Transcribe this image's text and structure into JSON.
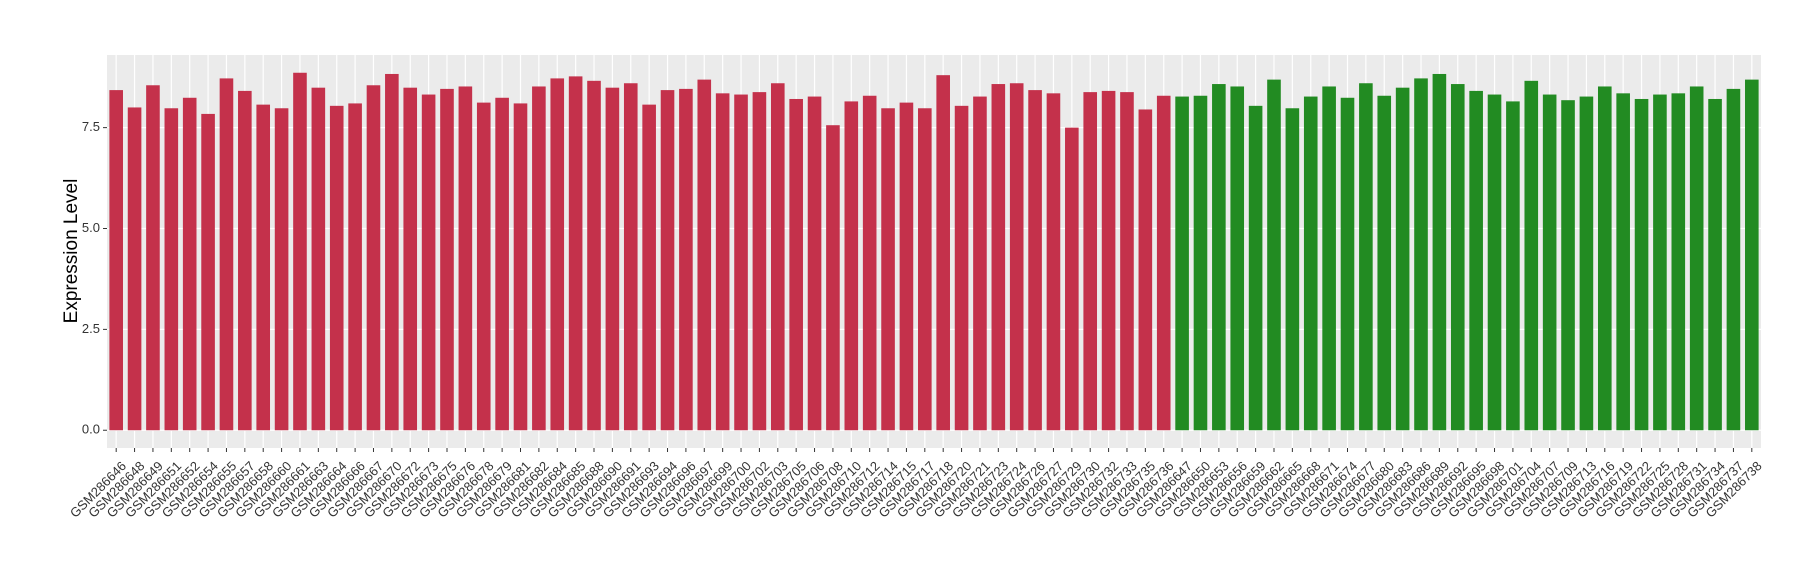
{
  "chart_data": {
    "type": "bar",
    "y_label": "Expression Level",
    "categories": [
      "GSM286646",
      "GSM286648",
      "GSM286649",
      "GSM286651",
      "GSM286652",
      "GSM286654",
      "GSM286655",
      "GSM286657",
      "GSM286658",
      "GSM286660",
      "GSM286661",
      "GSM286663",
      "GSM286664",
      "GSM286666",
      "GSM286667",
      "GSM286670",
      "GSM286672",
      "GSM286673",
      "GSM286675",
      "GSM286676",
      "GSM286678",
      "GSM286679",
      "GSM286681",
      "GSM286682",
      "GSM286684",
      "GSM286685",
      "GSM286688",
      "GSM286690",
      "GSM286691",
      "GSM286693",
      "GSM286694",
      "GSM286696",
      "GSM286697",
      "GSM286699",
      "GSM286700",
      "GSM286702",
      "GSM286703",
      "GSM286705",
      "GSM286706",
      "GSM286708",
      "GSM286710",
      "GSM286712",
      "GSM286714",
      "GSM286715",
      "GSM286717",
      "GSM286718",
      "GSM286720",
      "GSM286721",
      "GSM286723",
      "GSM286724",
      "GSM286726",
      "GSM286727",
      "GSM286729",
      "GSM286730",
      "GSM286732",
      "GSM286733",
      "GSM286735",
      "GSM286736",
      "GSM286647",
      "GSM286650",
      "GSM286653",
      "GSM286656",
      "GSM286659",
      "GSM286662",
      "GSM286665",
      "GSM286668",
      "GSM286671",
      "GSM286674",
      "GSM286677",
      "GSM286680",
      "GSM286683",
      "GSM286686",
      "GSM286689",
      "GSM286692",
      "GSM286695",
      "GSM286698",
      "GSM286701",
      "GSM286704",
      "GSM286707",
      "GSM286709",
      "GSM286713",
      "GSM286716",
      "GSM286719",
      "GSM286722",
      "GSM286725",
      "GSM286728",
      "GSM286731",
      "GSM286734",
      "GSM286737",
      "GSM286738"
    ],
    "values": [
      8.43,
      8.0,
      8.55,
      7.98,
      8.24,
      7.84,
      8.72,
      8.41,
      8.07,
      7.98,
      8.86,
      8.49,
      8.04,
      8.1,
      8.55,
      8.83,
      8.49,
      8.32,
      8.46,
      8.52,
      8.12,
      8.24,
      8.1,
      8.52,
      8.72,
      8.77,
      8.66,
      8.49,
      8.6,
      8.07,
      8.43,
      8.46,
      8.69,
      8.35,
      8.32,
      8.38,
      8.6,
      8.21,
      8.27,
      7.56,
      8.15,
      8.29,
      7.98,
      8.12,
      7.98,
      8.8,
      8.04,
      8.27,
      8.58,
      8.6,
      8.43,
      8.35,
      7.5,
      8.38,
      8.41,
      8.38,
      7.95,
      8.29,
      8.27,
      8.29,
      8.58,
      8.52,
      8.04,
      8.69,
      7.98,
      8.27,
      8.52,
      8.24,
      8.6,
      8.29,
      8.49,
      8.72,
      8.83,
      8.58,
      8.41,
      8.32,
      8.15,
      8.66,
      8.32,
      8.18,
      8.27,
      8.52,
      8.35,
      8.21,
      8.32,
      8.35,
      8.52,
      8.21,
      8.46,
      8.69
    ],
    "colors": [
      "#c4314b",
      "#c4314b",
      "#c4314b",
      "#c4314b",
      "#c4314b",
      "#c4314b",
      "#c4314b",
      "#c4314b",
      "#c4314b",
      "#c4314b",
      "#c4314b",
      "#c4314b",
      "#c4314b",
      "#c4314b",
      "#c4314b",
      "#c4314b",
      "#c4314b",
      "#c4314b",
      "#c4314b",
      "#c4314b",
      "#c4314b",
      "#c4314b",
      "#c4314b",
      "#c4314b",
      "#c4314b",
      "#c4314b",
      "#c4314b",
      "#c4314b",
      "#c4314b",
      "#c4314b",
      "#c4314b",
      "#c4314b",
      "#c4314b",
      "#c4314b",
      "#c4314b",
      "#c4314b",
      "#c4314b",
      "#c4314b",
      "#c4314b",
      "#c4314b",
      "#c4314b",
      "#c4314b",
      "#c4314b",
      "#c4314b",
      "#c4314b",
      "#c4314b",
      "#c4314b",
      "#c4314b",
      "#c4314b",
      "#c4314b",
      "#c4314b",
      "#c4314b",
      "#c4314b",
      "#c4314b",
      "#c4314b",
      "#c4314b",
      "#c4314b",
      "#c4314b",
      "#228b22",
      "#228b22",
      "#228b22",
      "#228b22",
      "#228b22",
      "#228b22",
      "#228b22",
      "#228b22",
      "#228b22",
      "#228b22",
      "#228b22",
      "#228b22",
      "#228b22",
      "#228b22",
      "#228b22",
      "#228b22",
      "#228b22",
      "#228b22",
      "#228b22",
      "#228b22",
      "#228b22",
      "#228b22",
      "#228b22",
      "#228b22",
      "#228b22",
      "#228b22",
      "#228b22",
      "#228b22",
      "#228b22",
      "#228b22",
      "#228b22",
      "#228b22"
    ],
    "ylim": [
      -0.44,
      9.3
    ],
    "yticks": [
      {
        "value": 0,
        "label": "0.0"
      },
      {
        "value": 2.5,
        "label": "2.5"
      },
      {
        "value": 5,
        "label": "5.0"
      },
      {
        "value": 7.5,
        "label": "7.5"
      }
    ],
    "grid": true
  }
}
